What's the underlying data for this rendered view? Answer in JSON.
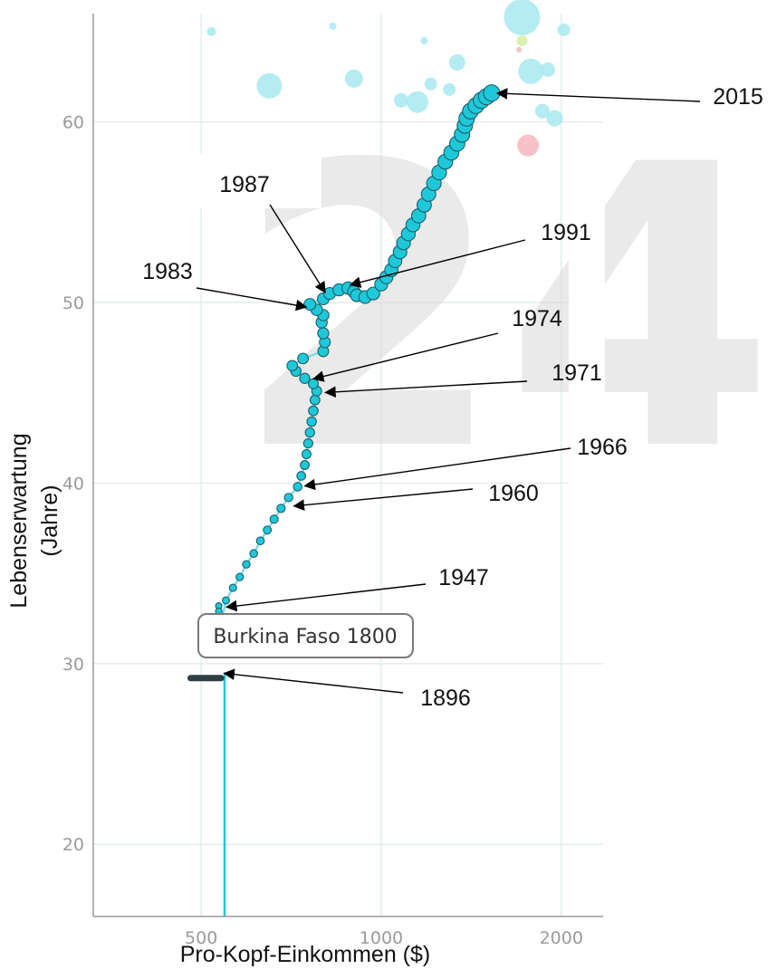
{
  "chart_data": {
    "type": "scatter",
    "title": "",
    "xlabel": "Pro-Kopf-Einkommen ($)",
    "ylabel_lines": [
      "Lebenserwartung",
      "(Jahre)"
    ],
    "x_scale": "log",
    "xlim": [
      330,
      2350
    ],
    "ylim": [
      16,
      66
    ],
    "x_ticks": [
      500,
      1000,
      2000
    ],
    "x_tick_labels": [
      "500",
      "1000",
      "2000"
    ],
    "y_ticks": [
      20,
      30,
      40,
      50,
      60
    ],
    "y_tick_labels": [
      "20",
      "30",
      "40",
      "50",
      "60"
    ],
    "grid": true,
    "watermark_text": "24",
    "tooltip": "Burkina Faso 1800",
    "series": [
      {
        "name": "Burkina Faso 1800",
        "color": "#1fc8d8",
        "points": [
          {
            "x": 535,
            "y": 33.2
          },
          {
            "x": 535,
            "y": 32.9
          },
          {
            "x": 536,
            "y": 32.6
          },
          {
            "x": 537,
            "y": 32.3
          },
          {
            "x": 538,
            "y": 32.0
          },
          {
            "x": 550,
            "y": 33.5
          },
          {
            "x": 565,
            "y": 34.2
          },
          {
            "x": 580,
            "y": 34.8
          },
          {
            "x": 595,
            "y": 35.5
          },
          {
            "x": 612,
            "y": 36.1
          },
          {
            "x": 628,
            "y": 36.8
          },
          {
            "x": 645,
            "y": 37.4
          },
          {
            "x": 662,
            "y": 38.0
          },
          {
            "x": 680,
            "y": 38.6
          },
          {
            "x": 700,
            "y": 39.2
          },
          {
            "x": 725,
            "y": 39.8
          },
          {
            "x": 735,
            "y": 40.4
          },
          {
            "x": 745,
            "y": 41.0
          },
          {
            "x": 750,
            "y": 41.6
          },
          {
            "x": 755,
            "y": 42.2
          },
          {
            "x": 760,
            "y": 42.8
          },
          {
            "x": 765,
            "y": 43.4
          },
          {
            "x": 770,
            "y": 44.0
          },
          {
            "x": 775,
            "y": 44.6
          },
          {
            "x": 780,
            "y": 45.1
          },
          {
            "x": 770,
            "y": 45.5
          },
          {
            "x": 745,
            "y": 45.8
          },
          {
            "x": 720,
            "y": 46.2
          },
          {
            "x": 710,
            "y": 46.5
          },
          {
            "x": 740,
            "y": 46.9
          },
          {
            "x": 800,
            "y": 47.3
          },
          {
            "x": 805,
            "y": 47.8
          },
          {
            "x": 800,
            "y": 48.3
          },
          {
            "x": 795,
            "y": 48.9
          },
          {
            "x": 800,
            "y": 49.3
          },
          {
            "x": 780,
            "y": 49.6
          },
          {
            "x": 760,
            "y": 49.9
          },
          {
            "x": 800,
            "y": 50.2
          },
          {
            "x": 820,
            "y": 50.5
          },
          {
            "x": 850,
            "y": 50.7
          },
          {
            "x": 880,
            "y": 50.8
          },
          {
            "x": 900,
            "y": 50.6
          },
          {
            "x": 910,
            "y": 50.4
          },
          {
            "x": 940,
            "y": 50.3
          },
          {
            "x": 970,
            "y": 50.5
          },
          {
            "x": 1000,
            "y": 51.0
          },
          {
            "x": 1020,
            "y": 51.4
          },
          {
            "x": 1040,
            "y": 51.8
          },
          {
            "x": 1055,
            "y": 52.3
          },
          {
            "x": 1075,
            "y": 52.8
          },
          {
            "x": 1090,
            "y": 53.3
          },
          {
            "x": 1110,
            "y": 53.8
          },
          {
            "x": 1130,
            "y": 54.3
          },
          {
            "x": 1155,
            "y": 54.8
          },
          {
            "x": 1180,
            "y": 55.4
          },
          {
            "x": 1200,
            "y": 56.0
          },
          {
            "x": 1225,
            "y": 56.6
          },
          {
            "x": 1250,
            "y": 57.2
          },
          {
            "x": 1280,
            "y": 57.8
          },
          {
            "x": 1310,
            "y": 58.3
          },
          {
            "x": 1340,
            "y": 58.8
          },
          {
            "x": 1365,
            "y": 59.3
          },
          {
            "x": 1380,
            "y": 59.8
          },
          {
            "x": 1390,
            "y": 60.2
          },
          {
            "x": 1410,
            "y": 60.6
          },
          {
            "x": 1440,
            "y": 60.9
          },
          {
            "x": 1470,
            "y": 61.2
          },
          {
            "x": 1500,
            "y": 61.4
          },
          {
            "x": 1530,
            "y": 61.6
          }
        ],
        "flat_segment": {
          "x_from": 480,
          "x_to": 525,
          "y": 29.2
        }
      }
    ],
    "background_bubbles": [
      {
        "x": 520,
        "y": 65.0,
        "color": "#a7e9f0"
      },
      {
        "x": 650,
        "y": 62.0,
        "color": "#a7e9f0"
      },
      {
        "x": 900,
        "y": 62.4,
        "color": "#a7e9f0"
      },
      {
        "x": 1080,
        "y": 61.2,
        "color": "#a7e9f0"
      },
      {
        "x": 1150,
        "y": 61.1,
        "color": "#a7e9f0"
      },
      {
        "x": 1340,
        "y": 63.3,
        "color": "#a7e9f0"
      },
      {
        "x": 1720,
        "y": 65.8,
        "color": "#a7e9f0"
      },
      {
        "x": 1780,
        "y": 62.8,
        "color": "#a7e9f0"
      },
      {
        "x": 1860,
        "y": 60.6,
        "color": "#a7e9f0"
      },
      {
        "x": 1760,
        "y": 58.7,
        "color": "#f6b6be"
      },
      {
        "x": 1720,
        "y": 64.5,
        "color": "#d6efa0"
      },
      {
        "x": 1300,
        "y": 61.8,
        "color": "#a7e9f0"
      },
      {
        "x": 830,
        "y": 65.3,
        "color": "#a7e9f0"
      },
      {
        "x": 1900,
        "y": 62.9,
        "color": "#a7e9f0"
      },
      {
        "x": 1950,
        "y": 60.2,
        "color": "#a7e9f0"
      },
      {
        "x": 1180,
        "y": 64.5,
        "color": "#a7e9f0"
      },
      {
        "x": 1210,
        "y": 62.1,
        "color": "#a7e9f0"
      },
      {
        "x": 2020,
        "y": 65.1,
        "color": "#a7e9f0"
      },
      {
        "x": 1700,
        "y": 64.0,
        "color": "#f6b6be"
      }
    ],
    "annotations": [
      {
        "label": "2015",
        "x": 1530,
        "y": 61.6
      },
      {
        "label": "1987",
        "x": 815,
        "y": 50.3
      },
      {
        "label": "1991",
        "x": 870,
        "y": 50.9
      },
      {
        "label": "1983",
        "x": 765,
        "y": 49.7
      },
      {
        "label": "1974",
        "x": 755,
        "y": 45.7
      },
      {
        "label": "1971",
        "x": 790,
        "y": 45.0
      },
      {
        "label": "1966",
        "x": 730,
        "y": 39.8
      },
      {
        "label": "1960",
        "x": 700,
        "y": 38.7
      },
      {
        "label": "1947",
        "x": 540,
        "y": 33.1
      },
      {
        "label": "1896",
        "x": 535,
        "y": 29.5
      }
    ]
  }
}
